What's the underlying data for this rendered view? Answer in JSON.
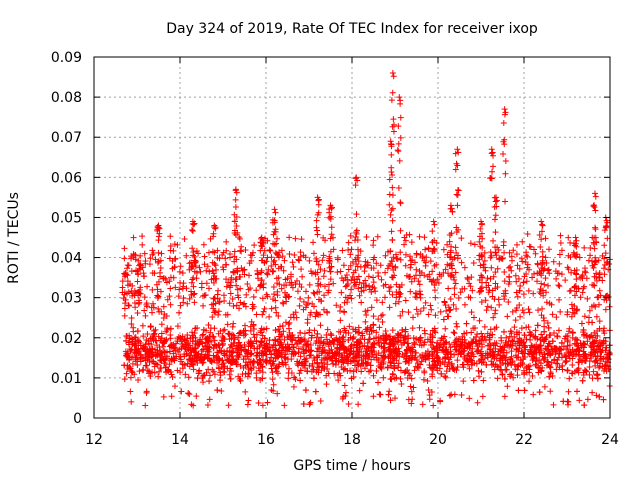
{
  "chart_data": {
    "type": "scatter",
    "title": "Day 324 of 2019, Rate Of TEC Index for receiver ixop",
    "xlabel": "GPS time / hours",
    "ylabel": "ROTI / TECUs",
    "xlim": [
      12,
      24
    ],
    "ylim": [
      0,
      0.09
    ],
    "xticks": [
      12,
      14,
      16,
      18,
      20,
      22,
      24
    ],
    "xtick_labels": [
      "12",
      "14",
      "16",
      "18",
      "20",
      "22",
      "24"
    ],
    "yticks": [
      0,
      0.01,
      0.02,
      0.03,
      0.04,
      0.05,
      0.06,
      0.07,
      0.08,
      0.09
    ],
    "ytick_labels": [
      "0",
      "0.01",
      "0.02",
      "0.03",
      "0.04",
      "0.05",
      "0.06",
      "0.07",
      "0.08",
      "0.09"
    ],
    "grid": true,
    "marker": "+",
    "marker_color": "#ff0000",
    "series": [
      {
        "name": "ROTI",
        "note": "dense band of points, approximated envelope and notable peaks",
        "x_start": 12.7,
        "x_end": 24.0,
        "base_band": [
          0.005,
          0.025
        ],
        "peaks": [
          {
            "x": 12.7,
            "y": 0.036
          },
          {
            "x": 13.05,
            "y": 0.038
          },
          {
            "x": 13.5,
            "y": 0.048
          },
          {
            "x": 14.3,
            "y": 0.049
          },
          {
            "x": 14.8,
            "y": 0.048
          },
          {
            "x": 15.3,
            "y": 0.057
          },
          {
            "x": 15.9,
            "y": 0.045
          },
          {
            "x": 16.2,
            "y": 0.052
          },
          {
            "x": 17.2,
            "y": 0.055
          },
          {
            "x": 17.5,
            "y": 0.053
          },
          {
            "x": 18.1,
            "y": 0.06
          },
          {
            "x": 18.9,
            "y": 0.069
          },
          {
            "x": 18.95,
            "y": 0.086
          },
          {
            "x": 19.1,
            "y": 0.08
          },
          {
            "x": 19.9,
            "y": 0.049
          },
          {
            "x": 20.3,
            "y": 0.053
          },
          {
            "x": 20.45,
            "y": 0.067
          },
          {
            "x": 21.0,
            "y": 0.049
          },
          {
            "x": 21.25,
            "y": 0.067
          },
          {
            "x": 21.35,
            "y": 0.055
          },
          {
            "x": 21.55,
            "y": 0.077
          },
          {
            "x": 22.4,
            "y": 0.049
          },
          {
            "x": 23.2,
            "y": 0.045
          },
          {
            "x": 23.65,
            "y": 0.056
          },
          {
            "x": 23.9,
            "y": 0.05
          }
        ]
      }
    ]
  }
}
